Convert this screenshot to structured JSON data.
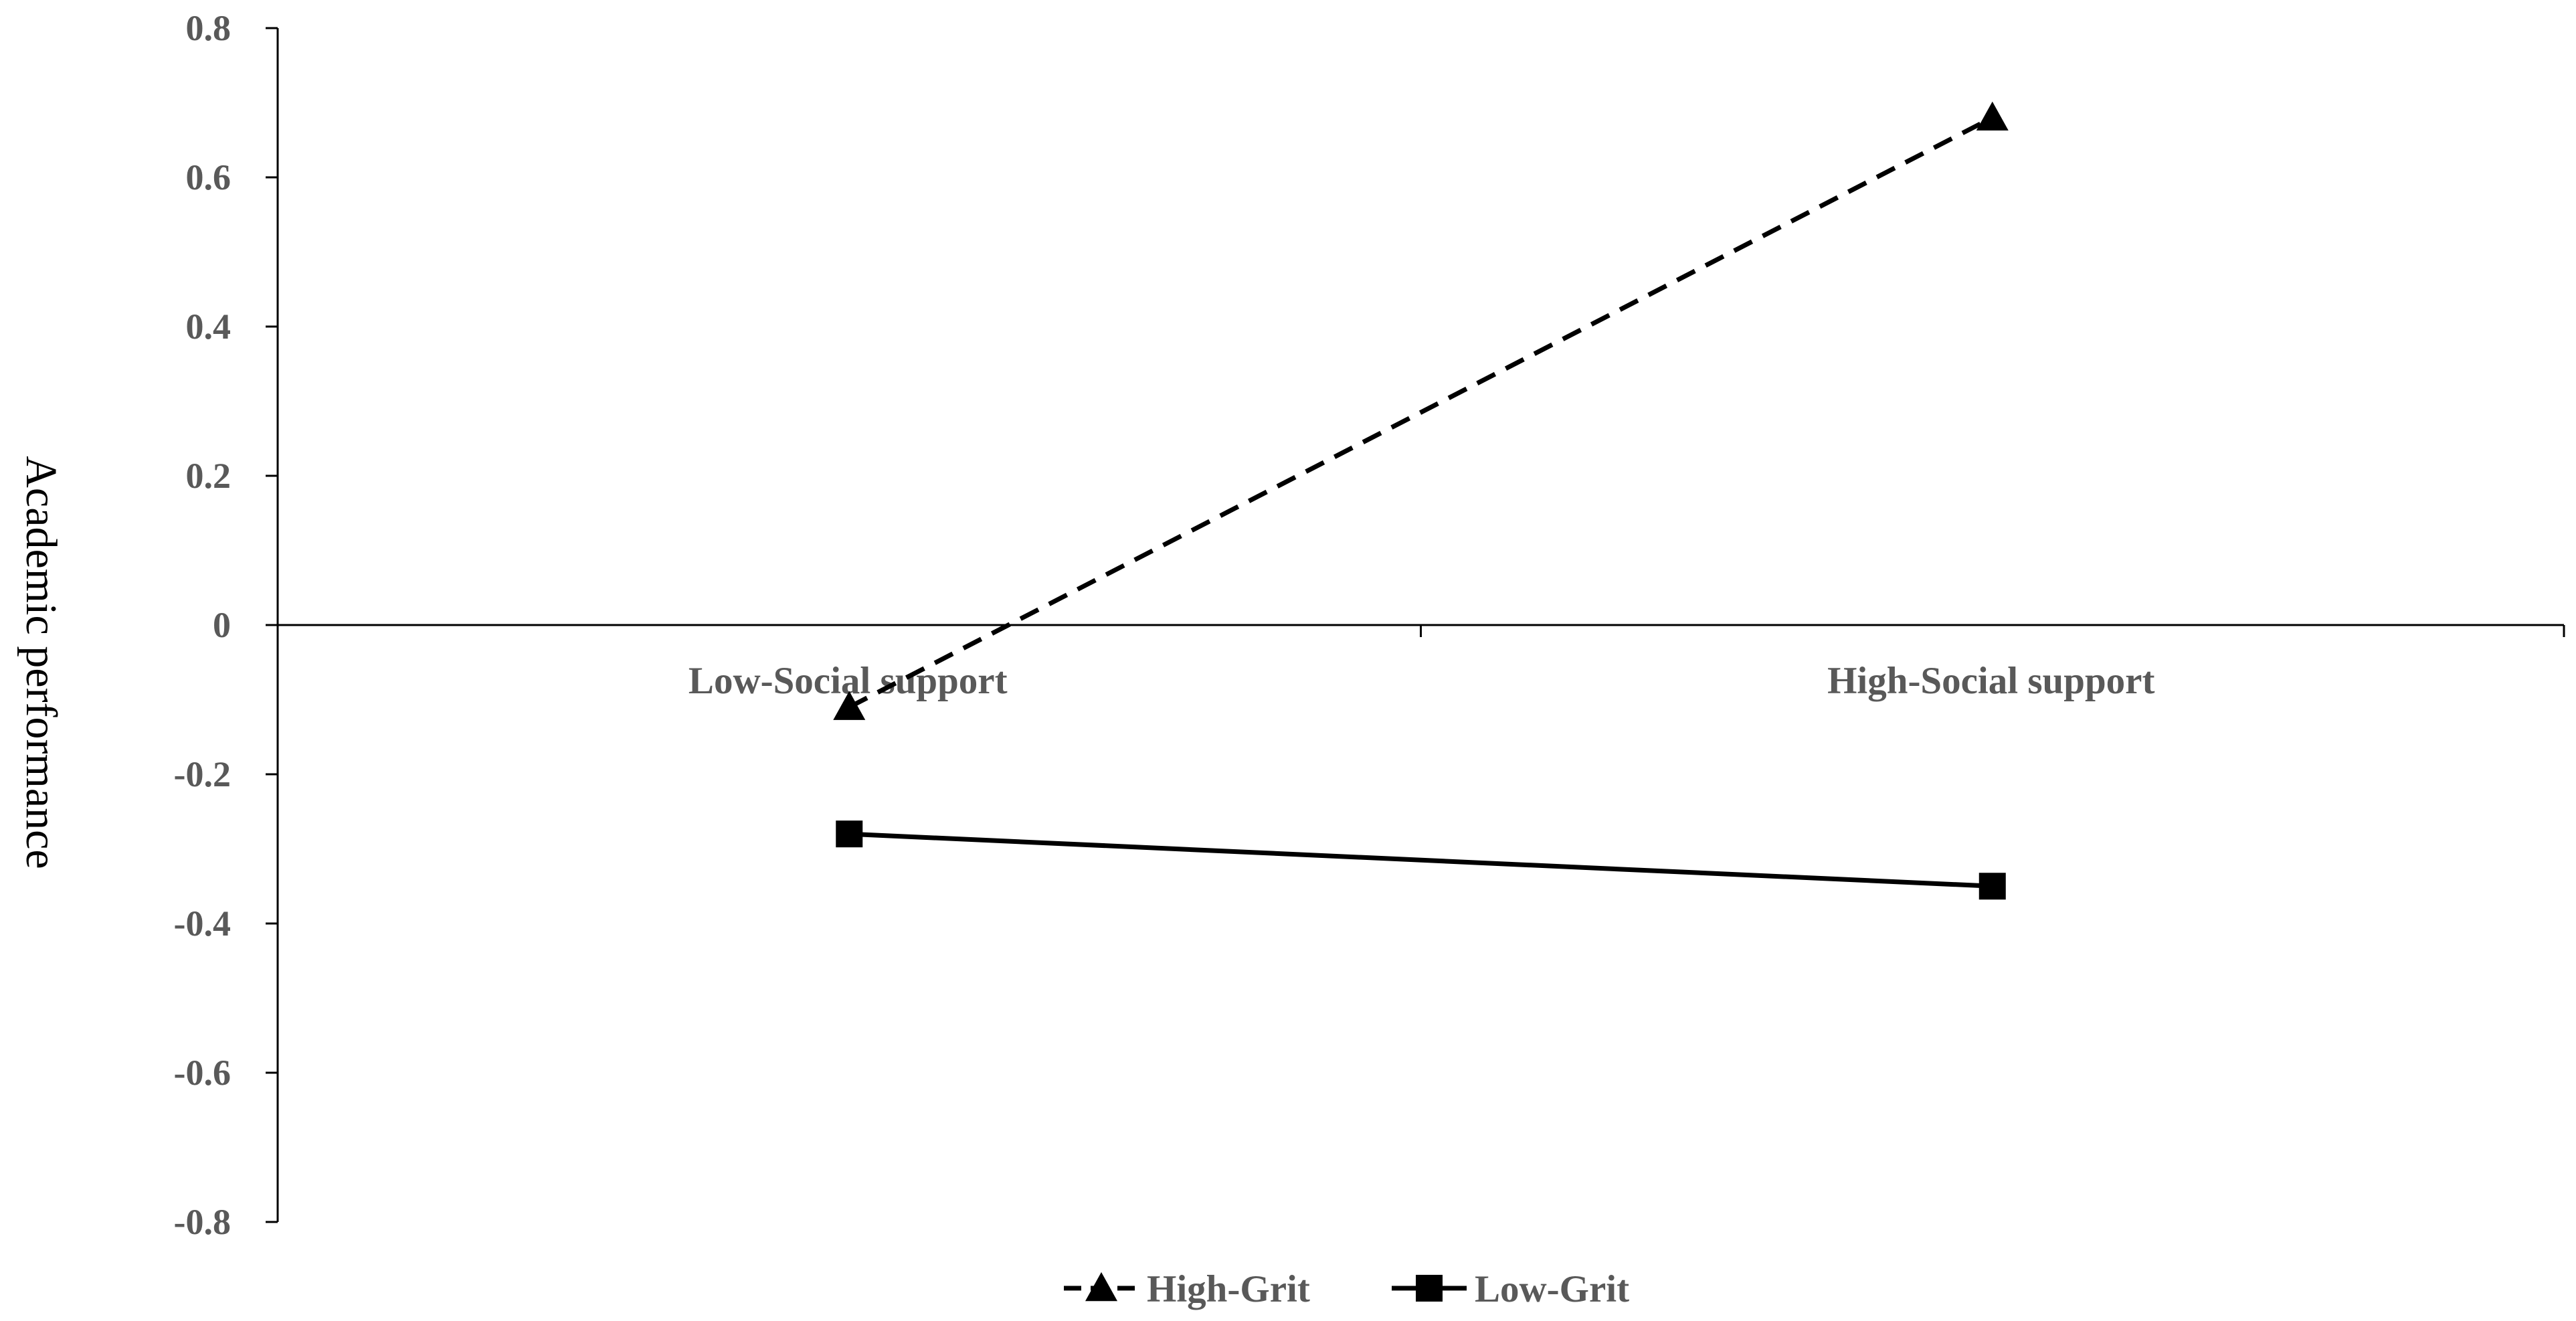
{
  "chart_data": {
    "type": "line",
    "title": "",
    "xlabel": "",
    "ylabel": "Academic performance",
    "categories": [
      "Low-Social support",
      "High-Social support"
    ],
    "ylim": [
      -0.8,
      0.8
    ],
    "yticks": [
      "0.8",
      "0.6",
      "0.4",
      "0.2",
      "0",
      "-0.2",
      "-0.4",
      "-0.6",
      "-0.8"
    ],
    "grid": false,
    "legend_position": "bottom",
    "series": [
      {
        "name": "High-Grit",
        "values": [
          -0.11,
          0.68
        ],
        "line_style": "dashed",
        "marker": "triangle",
        "color": "#000000"
      },
      {
        "name": "Low-Grit",
        "values": [
          -0.28,
          -0.35
        ],
        "line_style": "solid",
        "marker": "square",
        "color": "#000000"
      }
    ]
  }
}
